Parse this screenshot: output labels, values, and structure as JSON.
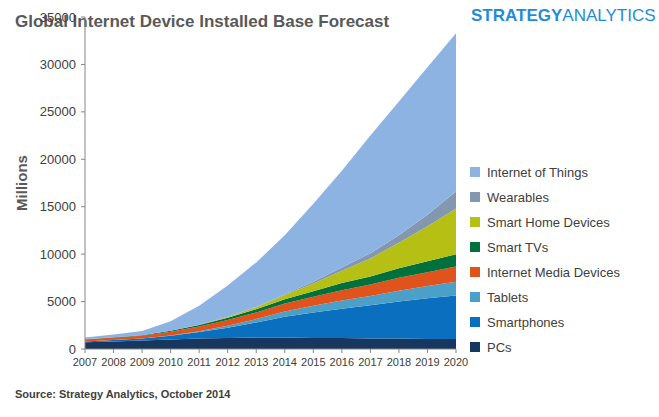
{
  "chart_data": {
    "type": "area",
    "stacked": true,
    "grid": false,
    "legend": "right",
    "title": "Global Internet Device Installed Base Forecast",
    "brand": [
      "STRATEGY",
      "ANALYTICS"
    ],
    "y_label": "Millions",
    "source": "Source: Strategy Analytics, October 2014",
    "x": [
      2007,
      2008,
      2009,
      2010,
      2011,
      2012,
      2013,
      2014,
      2015,
      2016,
      2017,
      2018,
      2019,
      2020
    ],
    "xlim": [
      2007,
      2020
    ],
    "xticks": [
      2007,
      2008,
      2009,
      2010,
      2011,
      2012,
      2013,
      2014,
      2015,
      2016,
      2017,
      2018,
      2019,
      2020
    ],
    "ylim": [
      0,
      35000
    ],
    "yticks": [
      0,
      5000,
      10000,
      15000,
      20000,
      25000,
      30000,
      35000
    ],
    "series": [
      {
        "name": "PCs",
        "color": "#17375e",
        "values": [
          700,
          800,
          900,
          1000,
          1100,
          1150,
          1200,
          1200,
          1150,
          1150,
          1100,
          1100,
          1050,
          1050
        ]
      },
      {
        "name": "Smartphones",
        "color": "#0a6fbf",
        "values": [
          100,
          150,
          200,
          400,
          700,
          1100,
          1600,
          2200,
          2700,
          3100,
          3500,
          3900,
          4300,
          4600
        ]
      },
      {
        "name": "Tablets",
        "color": "#4aa0c8",
        "values": [
          0,
          0,
          0,
          20,
          80,
          200,
          350,
          550,
          700,
          850,
          1000,
          1150,
          1300,
          1450
        ]
      },
      {
        "name": "Internet Media Devices",
        "color": "#e0531c",
        "values": [
          200,
          250,
          300,
          400,
          500,
          600,
          700,
          850,
          950,
          1100,
          1200,
          1350,
          1450,
          1600
        ]
      },
      {
        "name": "Smart TVs",
        "color": "#00703c",
        "values": [
          20,
          40,
          60,
          100,
          150,
          250,
          350,
          450,
          600,
          750,
          850,
          1000,
          1150,
          1300
        ]
      },
      {
        "name": "Smart Home Devices",
        "color": "#b6bf14",
        "values": [
          0,
          0,
          0,
          10,
          30,
          80,
          200,
          450,
          800,
          1300,
          1900,
          2700,
          3700,
          4800
        ]
      },
      {
        "name": "Wearables",
        "color": "#8497b0",
        "values": [
          0,
          0,
          0,
          0,
          0,
          10,
          30,
          80,
          200,
          350,
          550,
          800,
          1200,
          1800
        ]
      },
      {
        "name": "Internet of Things",
        "color": "#8db3e2",
        "values": [
          200,
          300,
          450,
          1000,
          2000,
          3300,
          4700,
          6200,
          8200,
          10200,
          12400,
          14100,
          15550,
          16700
        ]
      }
    ]
  }
}
